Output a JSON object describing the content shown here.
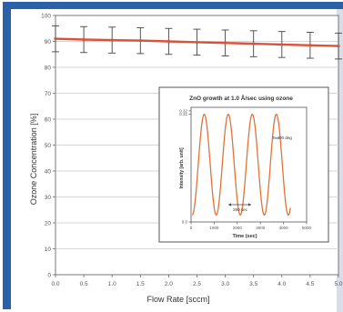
{
  "chart_data": [
    {
      "type": "line",
      "title": "",
      "xlabel": "Flow Rate [sccm]",
      "ylabel": "Ozone Concentration [%]",
      "xlim": [
        0.0,
        5.0
      ],
      "ylim": [
        0,
        100
      ],
      "xticks": [
        "0.0",
        "0.5",
        "1.0",
        "1.5",
        "2.0",
        "2.5",
        "3.0",
        "3.5",
        "4.0",
        "4.5",
        "5.0"
      ],
      "yticks": [
        "0",
        "10",
        "20",
        "30",
        "40",
        "50",
        "60",
        "70",
        "80",
        "90",
        "100"
      ],
      "grid": true,
      "series": [
        {
          "color": "#d9533c",
          "x": [
            0.0,
            0.5,
            1.0,
            1.5,
            2.0,
            2.5,
            3.0,
            3.5,
            4.0,
            4.5,
            5.0
          ],
          "y": [
            91,
            90.7,
            90.5,
            90.3,
            90,
            89.7,
            89.4,
            89.1,
            88.8,
            88.5,
            88.2
          ],
          "error": [
            5,
            5,
            5,
            5,
            5,
            5,
            5,
            5,
            5,
            5,
            5
          ]
        }
      ]
    },
    {
      "type": "line",
      "title": "ZnO growth at 1.0 Å/sec using ozone",
      "xlabel": "Time (sec)",
      "ylabel": "Intensity [arb. unit]",
      "xlim": [
        0,
        5000
      ],
      "ylim": [
        0.0,
        0.33
      ],
      "xticks": [
        "0",
        "1000",
        "2000",
        "3000",
        "4000",
        "5000"
      ],
      "yticks": [
        "0.0",
        "0.31",
        "0.32"
      ],
      "annotations": [
        "T=400 deg",
        "260 sec"
      ],
      "series": [
        {
          "color": "#e0733a",
          "x_start": 50,
          "x_end": 4300,
          "period": 1040,
          "min": 0.02,
          "max": 0.31
        }
      ]
    }
  ],
  "colors": {
    "frame_border": "#2a61a8",
    "series_line": "#d9533c",
    "inset_curve": "#e0733a",
    "error_bar": "#444444"
  }
}
